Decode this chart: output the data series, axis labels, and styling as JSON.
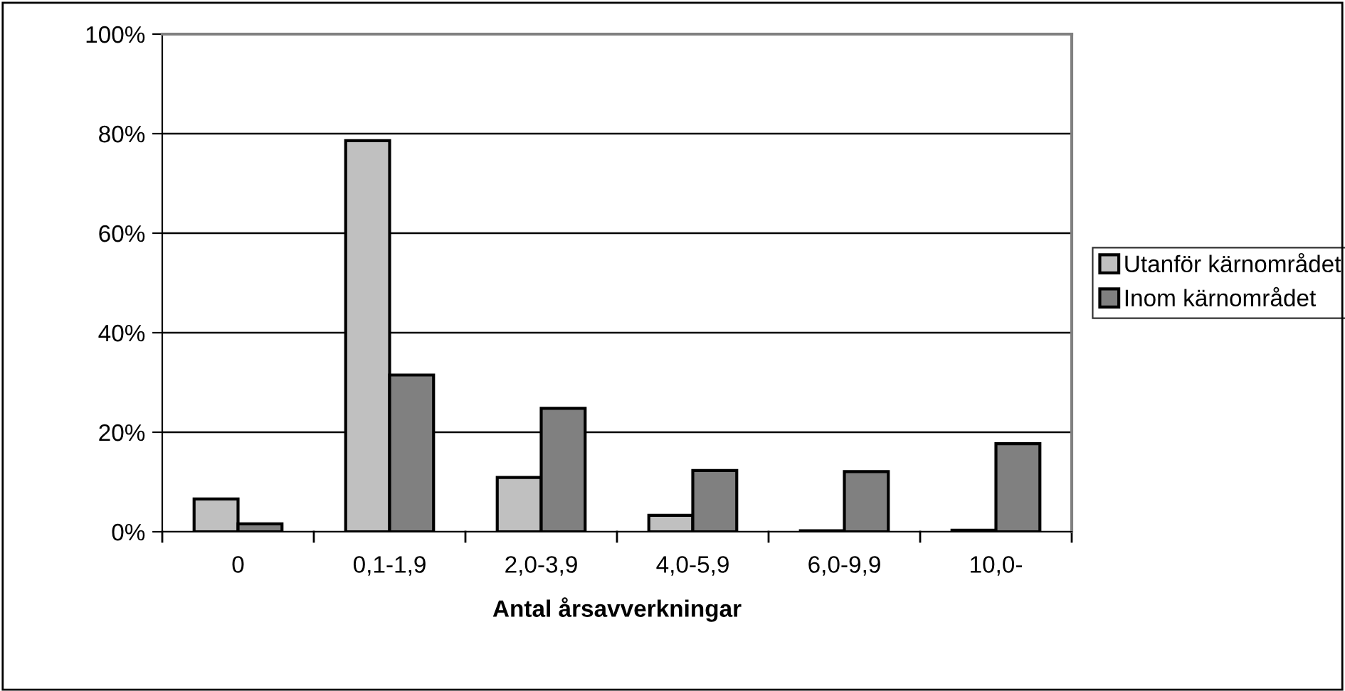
{
  "chart_data": {
    "type": "bar",
    "xlabel": "Antal årsavverkningar",
    "categories": [
      "0",
      "0,1-1,9",
      "2,0-3,9",
      "4,0-5,9",
      "6,0-9,9",
      "10,0-"
    ],
    "series": [
      {
        "name": "Utanför kärnområdet",
        "color": "#c0c0c0",
        "values": [
          6.6,
          78.6,
          10.9,
          3.3,
          0.2,
          0.3
        ]
      },
      {
        "name": "Inom kärnområdet",
        "color": "#808080",
        "values": [
          1.6,
          31.5,
          24.8,
          12.3,
          12.1,
          17.7
        ]
      }
    ],
    "ylim": [
      0,
      100
    ],
    "yticks": [
      {
        "value": 0,
        "label": "0%"
      },
      {
        "value": 20,
        "label": "20%"
      },
      {
        "value": 40,
        "label": "40%"
      },
      {
        "value": 60,
        "label": "60%"
      },
      {
        "value": 80,
        "label": "80%"
      },
      {
        "value": 100,
        "label": "100%"
      }
    ],
    "grid": "y",
    "legend": "right"
  }
}
